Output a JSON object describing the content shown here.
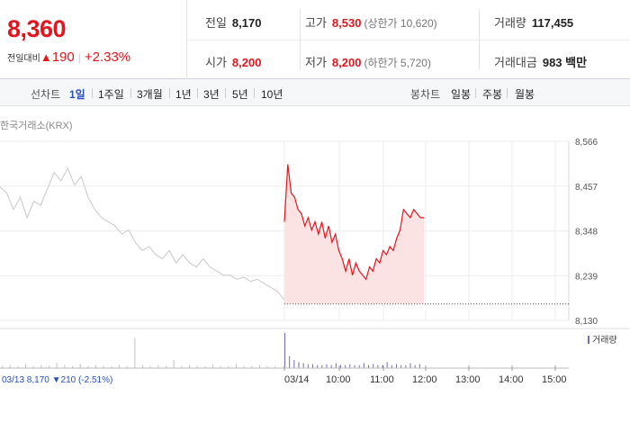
{
  "summary": {
    "price": "8,360",
    "change_label": "전일대비",
    "change_arrow": "▲",
    "change_amount": "190",
    "change_rate": "+2.33%"
  },
  "info": {
    "prev_close_label": "전일",
    "prev_close": "8,170",
    "high_label": "고가",
    "high": "8,530",
    "upper_limit": "(상한가 10,620)",
    "volume_label": "거래량",
    "volume": "117,455",
    "open_label": "시가",
    "open": "8,200",
    "low_label": "저가",
    "low": "8,200",
    "lower_limit": "(하한가 5,720)",
    "amount_label": "거래대금",
    "amount": "983 백만"
  },
  "tabs": {
    "line_label": "선차트",
    "line_tabs": [
      "1일",
      "1주일",
      "3개월",
      "1년",
      "3년",
      "5년",
      "10년"
    ],
    "active_tab": "1일",
    "candle_label": "봉차트",
    "candle_tabs": [
      "일봉",
      "주봉",
      "월봉"
    ]
  },
  "exchange_label": "한국거래소(KRX)",
  "volume_legend": "거래량",
  "prev_day_label": "03/13 8,170 ▼210 (-2.51%)",
  "colors": {
    "up": "#e2161f",
    "down": "#2a4fb7",
    "prev_line": "#c8c8c8",
    "fill": "#fbe3e3",
    "volume_prev": "#bfbfbf",
    "volume_today": "#7a6ab5"
  },
  "chart_data": {
    "type": "line",
    "x_tick_labels": [
      "03/14",
      "10:00",
      "11:00",
      "12:00",
      "13:00",
      "14:00",
      "15:00"
    ],
    "y_tick_labels": [
      "8,566",
      "8,457",
      "8,348",
      "8,239",
      "8,130"
    ],
    "ylim": [
      8130,
      8566
    ],
    "prev_close_value": 8170,
    "series": [
      {
        "name": "",
        "values": [
          8455,
          8440,
          8400,
          8430,
          8380,
          8420,
          8410,
          8450,
          8490,
          8470,
          8500,
          8460,
          8480,
          8430,
          8400,
          8380,
          8370,
          8360,
          8340,
          8350,
          8320,
          8300,
          8310,
          8290,
          8280,
          8300,
          8270,
          8290,
          8270,
          8260,
          8280,
          8260,
          8250,
          8240,
          8240,
          8230,
          8235,
          8225,
          8230,
          8220,
          8210,
          8200,
          8180
        ]
      },
      {
        "name": "",
        "values": [
          8370,
          8510,
          8440,
          8430,
          8400,
          8390,
          8360,
          8380,
          8350,
          8370,
          8340,
          8370,
          8330,
          8360,
          8320,
          8340,
          8300,
          8280,
          8250,
          8280,
          8240,
          8270,
          8250,
          8240,
          8230,
          8260,
          8250,
          8280,
          8270,
          8300,
          8290,
          8310,
          8300,
          8330,
          8350,
          8400,
          8390,
          8380,
          8400,
          8390,
          8380,
          8380
        ]
      }
    ],
    "volume": {
      "prev": [
        2,
        3,
        2,
        4,
        2,
        3,
        2,
        5,
        3,
        2,
        4,
        2,
        3,
        2,
        2,
        3,
        2,
        30,
        3,
        2,
        3,
        2,
        8,
        2,
        3,
        2,
        2,
        3,
        2,
        2,
        4,
        2,
        2,
        3,
        2,
        2
      ],
      "today": [
        35,
        12,
        8,
        6,
        5,
        4,
        4,
        3,
        3,
        4,
        3,
        5,
        3,
        3,
        4,
        3,
        3,
        5,
        3,
        4,
        3,
        3,
        6,
        3,
        4,
        3,
        3,
        5,
        3,
        4
      ]
    }
  }
}
